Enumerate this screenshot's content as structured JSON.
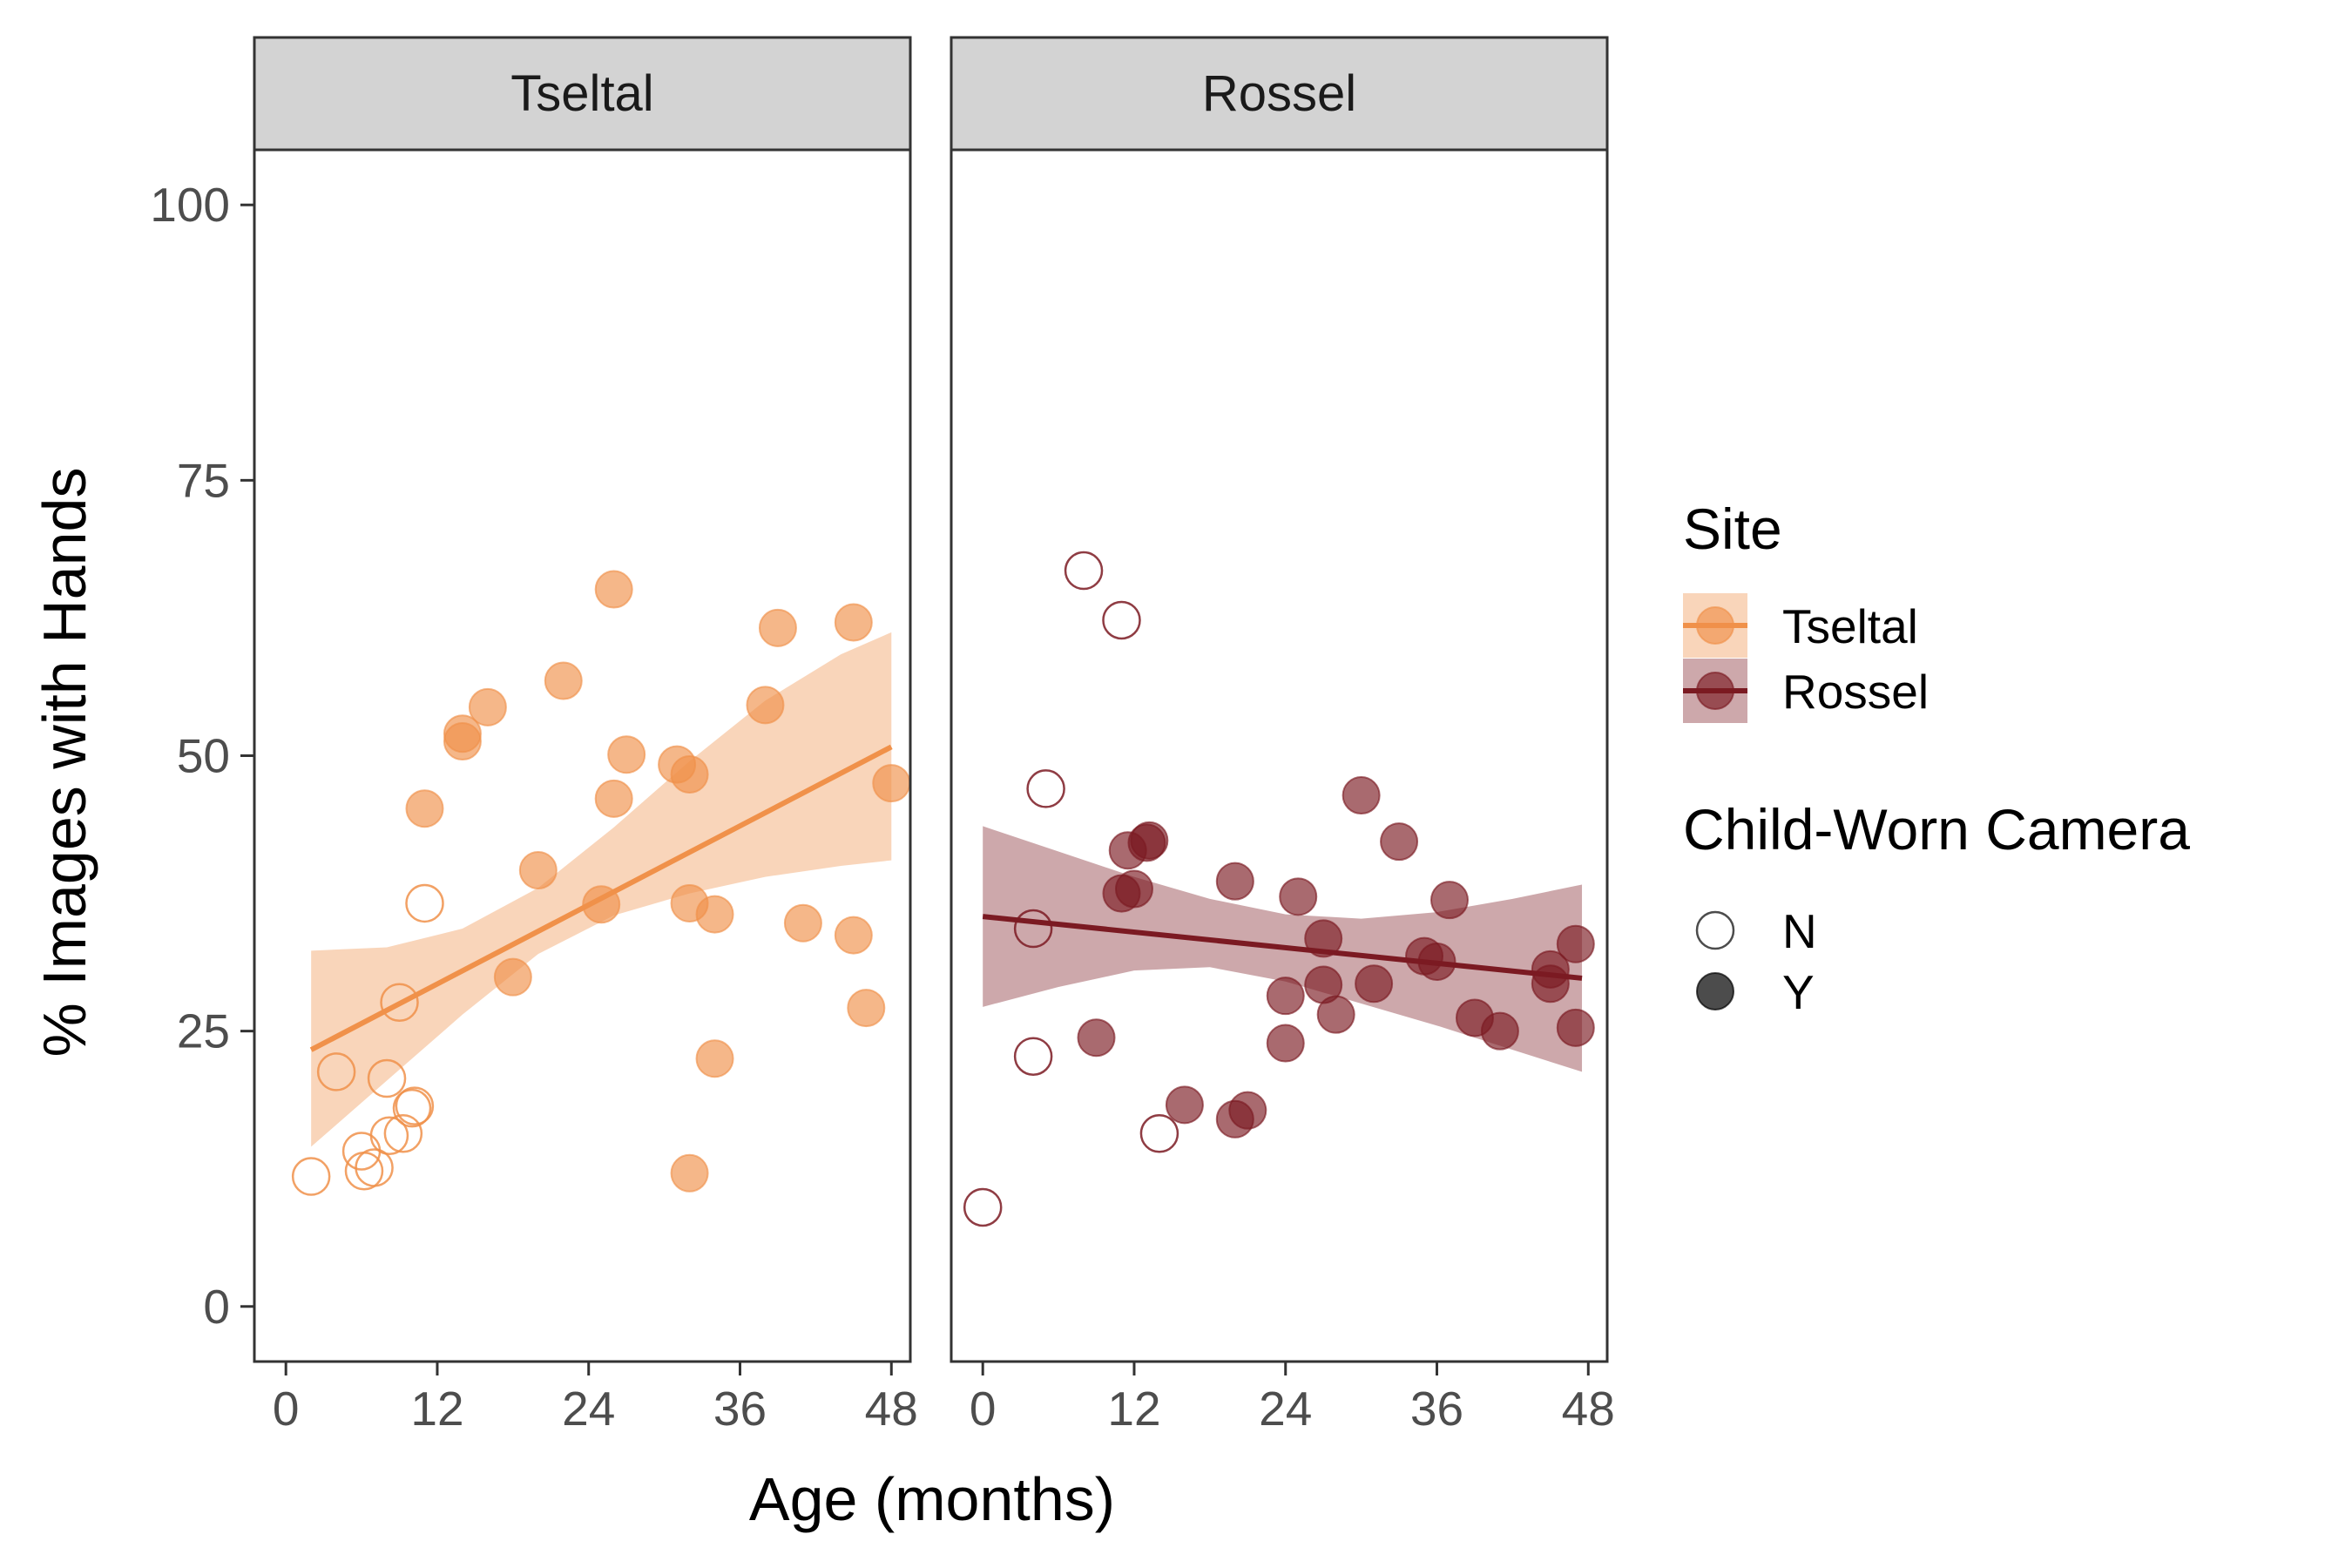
{
  "chart_data": {
    "type": "scatter",
    "ylabel": "% Images with Hands",
    "xlabel": "Age (months)",
    "xlim": [
      -2.5,
      49.5
    ],
    "ylim": [
      -5,
      105
    ],
    "x_ticks": [
      0,
      12,
      24,
      36,
      48
    ],
    "x_tick_labels": [
      "0",
      "12",
      "24",
      "36",
      "48"
    ],
    "y_ticks": [
      0,
      25,
      50,
      75,
      100
    ],
    "y_tick_labels": [
      "0",
      "25",
      "50",
      "75",
      "100"
    ],
    "grid": false,
    "legend_position": "right",
    "colors": {
      "Tseltal": "#F0914A",
      "Rossel": "#7B1A22"
    },
    "panels": [
      {
        "name": "Tseltal",
        "color": "#F0914A",
        "fit": {
          "x": [
            2,
            48
          ],
          "y": [
            23.3,
            50.8
          ]
        },
        "band": {
          "x": [
            2,
            8,
            14,
            20,
            26,
            32,
            38,
            44,
            48
          ],
          "lower": [
            14.5,
            20.5,
            26.5,
            32.0,
            35.5,
            37.5,
            39.0,
            40.0,
            40.5
          ],
          "upper": [
            32.3,
            32.6,
            34.3,
            38.0,
            43.5,
            49.5,
            55.0,
            59.2,
            61.2
          ]
        },
        "points": [
          {
            "x": 2,
            "y": 11.8,
            "worn": "N"
          },
          {
            "x": 4,
            "y": 21.3,
            "worn": "N"
          },
          {
            "x": 6,
            "y": 14.1,
            "worn": "N"
          },
          {
            "x": 6.2,
            "y": 12.3,
            "worn": "N"
          },
          {
            "x": 7,
            "y": 12.6,
            "worn": "N"
          },
          {
            "x": 8,
            "y": 20.7,
            "worn": "N"
          },
          {
            "x": 8.2,
            "y": 15.5,
            "worn": "N"
          },
          {
            "x": 9,
            "y": 27.6,
            "worn": "N"
          },
          {
            "x": 9.3,
            "y": 15.7,
            "worn": "N"
          },
          {
            "x": 10,
            "y": 18.0,
            "worn": "N"
          },
          {
            "x": 10.2,
            "y": 18.2,
            "worn": "N"
          },
          {
            "x": 11,
            "y": 36.6,
            "worn": "N"
          },
          {
            "x": 11,
            "y": 45.2,
            "worn": "Y"
          },
          {
            "x": 14,
            "y": 52.0,
            "worn": "Y"
          },
          {
            "x": 14,
            "y": 51.3,
            "worn": "Y"
          },
          {
            "x": 16,
            "y": 54.4,
            "worn": "Y"
          },
          {
            "x": 18,
            "y": 29.9,
            "worn": "Y"
          },
          {
            "x": 20,
            "y": 39.6,
            "worn": "Y"
          },
          {
            "x": 22,
            "y": 56.8,
            "worn": "Y"
          },
          {
            "x": 25,
            "y": 36.5,
            "worn": "Y"
          },
          {
            "x": 26,
            "y": 65.1,
            "worn": "Y"
          },
          {
            "x": 26,
            "y": 46.1,
            "worn": "Y"
          },
          {
            "x": 27,
            "y": 50.1,
            "worn": "Y"
          },
          {
            "x": 31,
            "y": 49.2,
            "worn": "Y"
          },
          {
            "x": 32,
            "y": 48.3,
            "worn": "Y"
          },
          {
            "x": 32,
            "y": 36.6,
            "worn": "Y"
          },
          {
            "x": 32,
            "y": 12.1,
            "worn": "Y"
          },
          {
            "x": 34,
            "y": 35.6,
            "worn": "Y"
          },
          {
            "x": 34,
            "y": 22.5,
            "worn": "Y"
          },
          {
            "x": 38,
            "y": 54.6,
            "worn": "Y"
          },
          {
            "x": 39,
            "y": 61.6,
            "worn": "Y"
          },
          {
            "x": 41,
            "y": 34.8,
            "worn": "Y"
          },
          {
            "x": 45,
            "y": 62.1,
            "worn": "Y"
          },
          {
            "x": 45,
            "y": 33.7,
            "worn": "Y"
          },
          {
            "x": 46,
            "y": 27.1,
            "worn": "Y"
          },
          {
            "x": 48,
            "y": 47.5,
            "worn": "Y"
          }
        ]
      },
      {
        "name": "Rossel",
        "color": "#7B1A22",
        "fit": {
          "x": [
            0,
            47.5
          ],
          "y": [
            35.4,
            29.8
          ]
        },
        "band": {
          "x": [
            0,
            6,
            12,
            18,
            24,
            30,
            36,
            42,
            47.5
          ],
          "lower": [
            27.2,
            29.0,
            30.5,
            30.8,
            29.5,
            27.5,
            25.5,
            23.3,
            21.3
          ],
          "upper": [
            43.6,
            41.3,
            39.0,
            37.0,
            35.6,
            35.2,
            35.8,
            37.0,
            38.3
          ]
        },
        "points": [
          {
            "x": 0,
            "y": 9.0,
            "worn": "N"
          },
          {
            "x": 4,
            "y": 34.3,
            "worn": "N"
          },
          {
            "x": 4,
            "y": 22.7,
            "worn": "N"
          },
          {
            "x": 5,
            "y": 47.0,
            "worn": "N"
          },
          {
            "x": 8,
            "y": 66.8,
            "worn": "N"
          },
          {
            "x": 11,
            "y": 62.3,
            "worn": "N"
          },
          {
            "x": 14,
            "y": 15.7,
            "worn": "N"
          },
          {
            "x": 9,
            "y": 24.4,
            "worn": "Y"
          },
          {
            "x": 11,
            "y": 37.5,
            "worn": "Y"
          },
          {
            "x": 11.5,
            "y": 41.4,
            "worn": "Y"
          },
          {
            "x": 12,
            "y": 37.9,
            "worn": "Y"
          },
          {
            "x": 13,
            "y": 42.1,
            "worn": "Y"
          },
          {
            "x": 13.2,
            "y": 42.3,
            "worn": "Y"
          },
          {
            "x": 16,
            "y": 18.3,
            "worn": "Y"
          },
          {
            "x": 20,
            "y": 38.6,
            "worn": "Y"
          },
          {
            "x": 20,
            "y": 17.0,
            "worn": "Y"
          },
          {
            "x": 21,
            "y": 17.8,
            "worn": "Y"
          },
          {
            "x": 24,
            "y": 28.2,
            "worn": "Y"
          },
          {
            "x": 24,
            "y": 23.9,
            "worn": "Y"
          },
          {
            "x": 25,
            "y": 37.2,
            "worn": "Y"
          },
          {
            "x": 27,
            "y": 33.4,
            "worn": "Y"
          },
          {
            "x": 27,
            "y": 29.2,
            "worn": "Y"
          },
          {
            "x": 28,
            "y": 26.5,
            "worn": "Y"
          },
          {
            "x": 30,
            "y": 46.4,
            "worn": "Y"
          },
          {
            "x": 31,
            "y": 29.3,
            "worn": "Y"
          },
          {
            "x": 33,
            "y": 42.2,
            "worn": "Y"
          },
          {
            "x": 35,
            "y": 31.8,
            "worn": "Y"
          },
          {
            "x": 36,
            "y": 31.3,
            "worn": "Y"
          },
          {
            "x": 37,
            "y": 36.9,
            "worn": "Y"
          },
          {
            "x": 39,
            "y": 26.2,
            "worn": "Y"
          },
          {
            "x": 41,
            "y": 25.0,
            "worn": "Y"
          },
          {
            "x": 45,
            "y": 30.6,
            "worn": "Y"
          },
          {
            "x": 45,
            "y": 29.3,
            "worn": "Y"
          },
          {
            "x": 47,
            "y": 32.9,
            "worn": "Y"
          },
          {
            "x": 47,
            "y": 25.3,
            "worn": "Y"
          }
        ]
      }
    ],
    "legend": {
      "site_title": "Site",
      "site_items": [
        {
          "label": "Tseltal",
          "color": "#F0914A"
        },
        {
          "label": "Rossel",
          "color": "#7B1A22"
        }
      ],
      "camera_title": "Child-Worn Camera",
      "camera_items": [
        {
          "label": "N",
          "filled": false
        },
        {
          "label": "Y",
          "filled": true
        }
      ]
    }
  }
}
